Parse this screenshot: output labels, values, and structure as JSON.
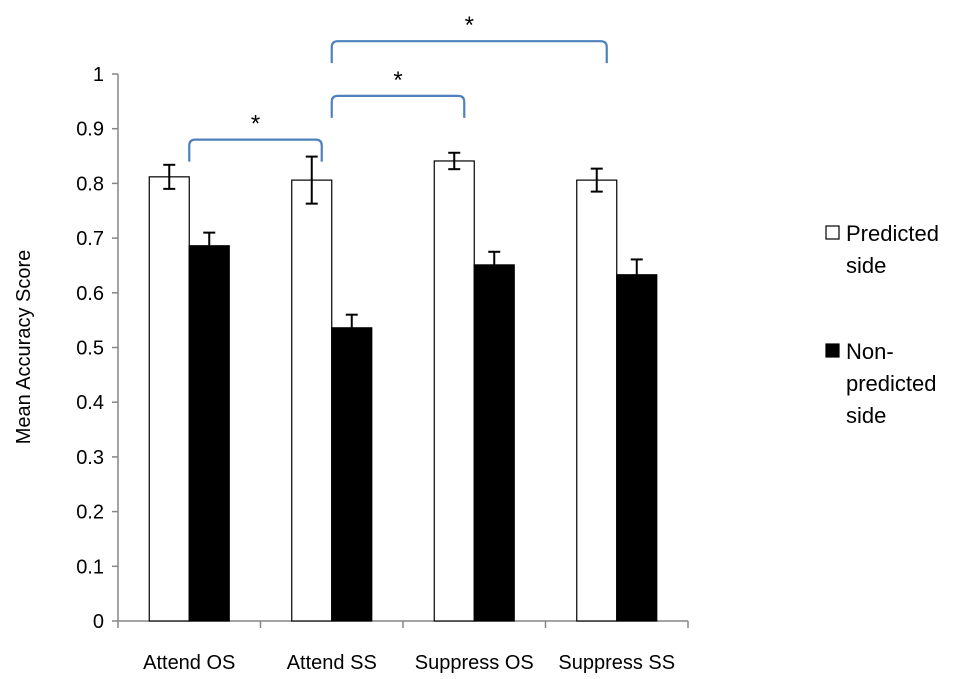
{
  "chart_data": {
    "type": "bar",
    "categories": [
      "Attend OS",
      "Attend SS",
      "Suppress OS",
      "Suppress SS"
    ],
    "series": [
      {
        "name": "Predicted side",
        "name_lines": [
          "Predicted",
          "side"
        ],
        "fill": "#ffffff",
        "values": [
          0.812,
          0.806,
          0.841,
          0.806
        ],
        "errors": [
          0.022,
          0.043,
          0.015,
          0.021
        ]
      },
      {
        "name": "Non-predicted side",
        "name_lines": [
          "Non-",
          "predicted",
          "side"
        ],
        "fill": "#000000",
        "values": [
          0.686,
          0.536,
          0.651,
          0.633
        ],
        "errors": [
          0.024,
          0.024,
          0.024,
          0.028
        ]
      }
    ],
    "ylabel": "Mean Accuracy Score",
    "xlabel": "",
    "title": "",
    "ylim": [
      0,
      1
    ],
    "yticks": [
      "0",
      "0.1",
      "0.2",
      "0.3",
      "0.4",
      "0.5",
      "0.6",
      "0.7",
      "0.8",
      "0.9",
      "1"
    ],
    "grid": false,
    "legend_position": "right",
    "significance_brackets": [
      {
        "from_category": 0,
        "to_category": 1,
        "label": "*",
        "level": 0.88
      },
      {
        "from_category": 1,
        "to_category": 2,
        "label": "*",
        "level": 0.96
      },
      {
        "from_category": 1,
        "to_category": 3,
        "label": "*",
        "level": 1.06
      }
    ],
    "colors": {
      "bracket": "#4f81bd",
      "axis": "#868686",
      "bar_edge": "#000000"
    }
  }
}
